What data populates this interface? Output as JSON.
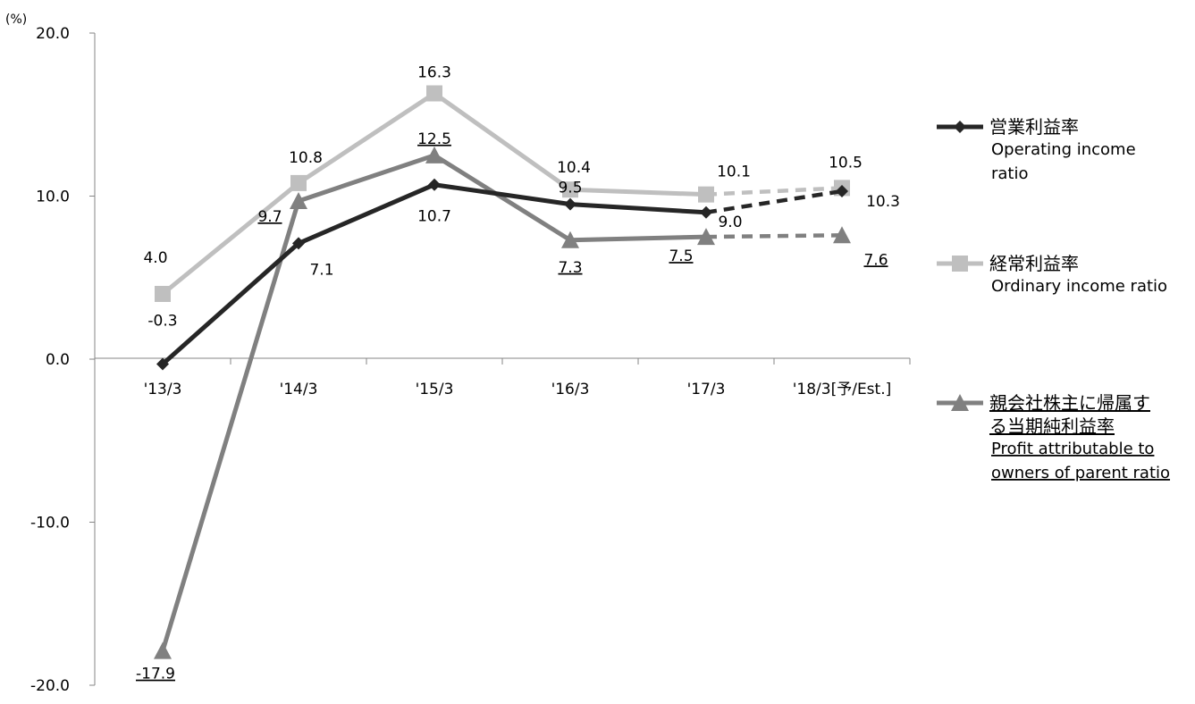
{
  "chart_data": {
    "type": "line",
    "unit_label": "(%)",
    "categories": [
      "'13/3",
      "'14/3",
      "'15/3",
      "'16/3",
      "'17/3",
      "'18/3[予/Est.]"
    ],
    "ylim": [
      -20,
      20
    ],
    "yticks": [
      "20.0",
      "10.0",
      "0.0",
      "-10.0",
      "-20.0"
    ],
    "ytick_values": [
      20,
      10,
      0,
      -10,
      -20
    ],
    "estimate_from_index": 4,
    "series": [
      {
        "key": "operating",
        "legend_jp": "営業利益率",
        "legend_en_lines": [
          "Operating income",
          "ratio"
        ],
        "legend_underline": false,
        "color": "#262626",
        "marker": "diamond",
        "values": [
          -0.3,
          7.1,
          10.7,
          9.5,
          9.0,
          10.3
        ],
        "labels": [
          "-0.3",
          "7.1",
          "10.7",
          "9.5",
          "9.0",
          "10.3"
        ],
        "label_underline": false
      },
      {
        "key": "ordinary",
        "legend_jp": "経常利益率",
        "legend_en_lines": [
          "Ordinary income ratio"
        ],
        "legend_underline": false,
        "color": "#bfbfbf",
        "marker": "square",
        "values": [
          4.0,
          10.8,
          16.3,
          10.4,
          10.1,
          10.5
        ],
        "labels": [
          "4.0",
          "10.8",
          "16.3",
          "10.4",
          "10.1",
          "10.5"
        ],
        "label_underline": false
      },
      {
        "key": "profit",
        "legend_jp_lines": [
          "親会社株主に帰属す",
          "る当期純利益率"
        ],
        "legend_en_lines": [
          "Profit attributable to",
          "owners of parent ratio"
        ],
        "legend_underline": true,
        "color": "#808080",
        "marker": "triangle",
        "values": [
          -17.9,
          9.7,
          12.5,
          7.3,
          7.5,
          7.6
        ],
        "labels": [
          "-17.9",
          "9.7",
          "12.5",
          "7.3",
          "7.5",
          "7.6"
        ],
        "label_underline": true
      }
    ]
  }
}
